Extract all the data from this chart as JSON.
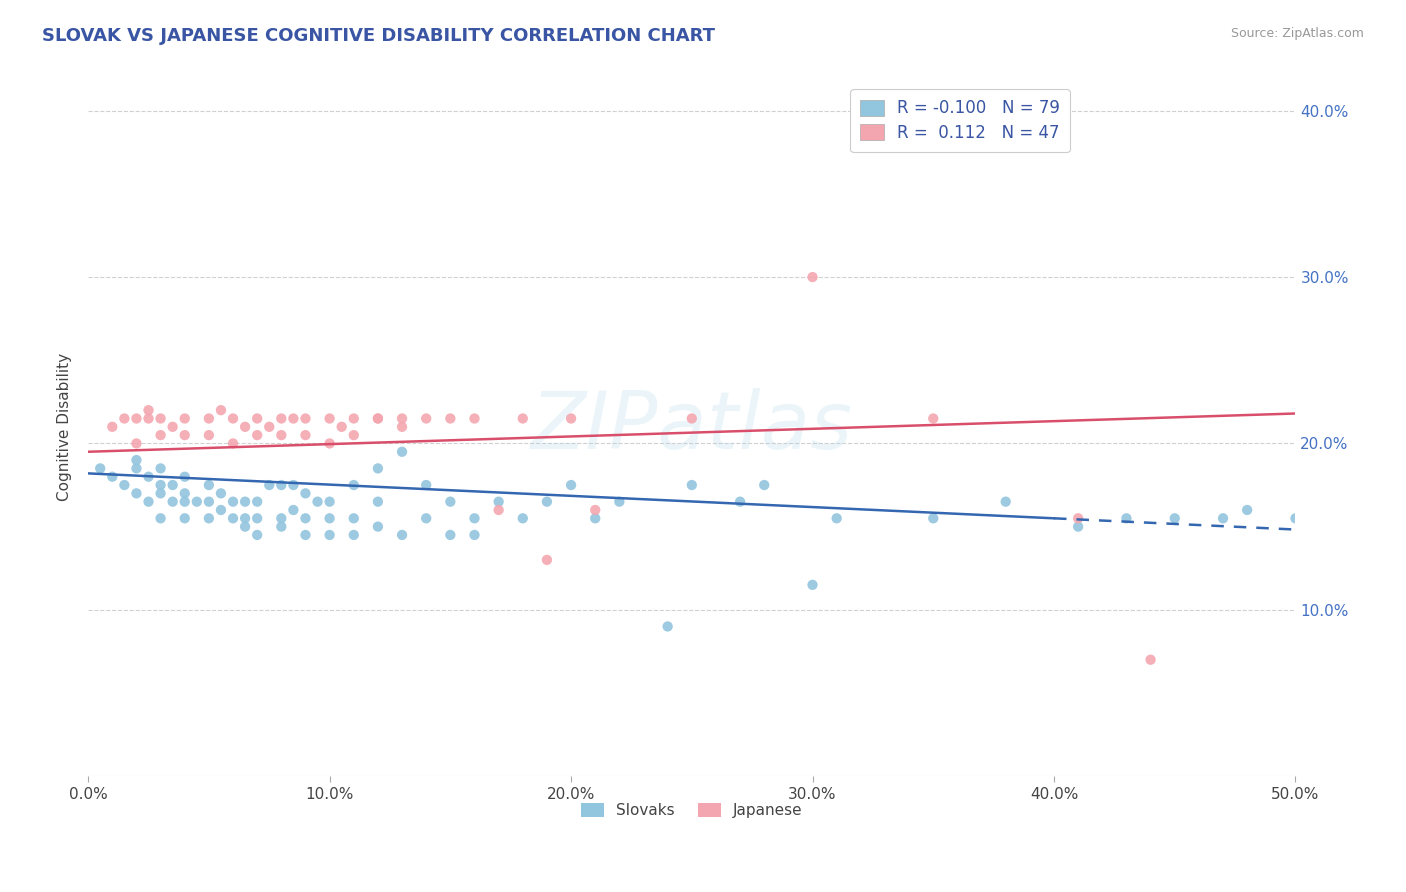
{
  "title": "SLOVAK VS JAPANESE COGNITIVE DISABILITY CORRELATION CHART",
  "source": "Source: ZipAtlas.com",
  "ylabel": "Cognitive Disability",
  "xlim": [
    0.0,
    0.5
  ],
  "ylim": [
    0.0,
    0.42
  ],
  "xticks": [
    0.0,
    0.1,
    0.2,
    0.3,
    0.4,
    0.5
  ],
  "xtick_labels": [
    "0.0%",
    "10.0%",
    "20.0%",
    "30.0%",
    "40.0%",
    "50.0%"
  ],
  "yticks": [
    0.0,
    0.1,
    0.2,
    0.3,
    0.4
  ],
  "ytick_labels": [
    "",
    "10.0%",
    "20.0%",
    "30.0%",
    "40.0%"
  ],
  "slovak_color": "#92c5de",
  "japanese_color": "#f4a6b0",
  "trendline_slovak_color": "#3467b0",
  "trendline_japanese_color": "#d94f6b",
  "R_slovak": -0.1,
  "N_slovak": 79,
  "R_japanese": 0.112,
  "N_japanese": 47,
  "legend_color": "#3955a3",
  "watermark": "ZIPatlas",
  "background_color": "#ffffff",
  "grid_color": "#d0d0d0",
  "slovak_x": [
    0.005,
    0.01,
    0.015,
    0.02,
    0.02,
    0.02,
    0.025,
    0.025,
    0.03,
    0.03,
    0.03,
    0.03,
    0.035,
    0.035,
    0.04,
    0.04,
    0.04,
    0.04,
    0.045,
    0.05,
    0.05,
    0.05,
    0.055,
    0.055,
    0.06,
    0.06,
    0.065,
    0.065,
    0.065,
    0.07,
    0.07,
    0.07,
    0.075,
    0.08,
    0.08,
    0.08,
    0.085,
    0.085,
    0.09,
    0.09,
    0.09,
    0.095,
    0.1,
    0.1,
    0.1,
    0.11,
    0.11,
    0.11,
    0.12,
    0.12,
    0.12,
    0.13,
    0.13,
    0.14,
    0.14,
    0.15,
    0.15,
    0.16,
    0.16,
    0.17,
    0.18,
    0.19,
    0.2,
    0.21,
    0.22,
    0.24,
    0.25,
    0.27,
    0.28,
    0.3,
    0.31,
    0.35,
    0.38,
    0.41,
    0.43,
    0.45,
    0.47,
    0.48,
    0.5
  ],
  "slovak_y": [
    0.185,
    0.18,
    0.175,
    0.17,
    0.185,
    0.19,
    0.165,
    0.18,
    0.155,
    0.17,
    0.175,
    0.185,
    0.165,
    0.175,
    0.155,
    0.165,
    0.17,
    0.18,
    0.165,
    0.155,
    0.165,
    0.175,
    0.16,
    0.17,
    0.155,
    0.165,
    0.15,
    0.155,
    0.165,
    0.145,
    0.155,
    0.165,
    0.175,
    0.15,
    0.155,
    0.175,
    0.16,
    0.175,
    0.145,
    0.155,
    0.17,
    0.165,
    0.145,
    0.155,
    0.165,
    0.145,
    0.155,
    0.175,
    0.15,
    0.165,
    0.185,
    0.145,
    0.195,
    0.155,
    0.175,
    0.145,
    0.165,
    0.145,
    0.155,
    0.165,
    0.155,
    0.165,
    0.175,
    0.155,
    0.165,
    0.09,
    0.175,
    0.165,
    0.175,
    0.115,
    0.155,
    0.155,
    0.165,
    0.15,
    0.155,
    0.155,
    0.155,
    0.16,
    0.155
  ],
  "japanese_x": [
    0.01,
    0.015,
    0.02,
    0.02,
    0.025,
    0.025,
    0.03,
    0.03,
    0.035,
    0.04,
    0.04,
    0.05,
    0.05,
    0.055,
    0.06,
    0.06,
    0.065,
    0.07,
    0.07,
    0.075,
    0.08,
    0.08,
    0.085,
    0.09,
    0.09,
    0.1,
    0.1,
    0.105,
    0.11,
    0.11,
    0.12,
    0.12,
    0.13,
    0.13,
    0.14,
    0.15,
    0.16,
    0.17,
    0.18,
    0.19,
    0.2,
    0.21,
    0.25,
    0.3,
    0.35,
    0.41,
    0.44
  ],
  "japanese_y": [
    0.21,
    0.215,
    0.2,
    0.215,
    0.215,
    0.22,
    0.205,
    0.215,
    0.21,
    0.205,
    0.215,
    0.205,
    0.215,
    0.22,
    0.2,
    0.215,
    0.21,
    0.205,
    0.215,
    0.21,
    0.205,
    0.215,
    0.215,
    0.205,
    0.215,
    0.2,
    0.215,
    0.21,
    0.205,
    0.215,
    0.215,
    0.215,
    0.21,
    0.215,
    0.215,
    0.215,
    0.215,
    0.16,
    0.215,
    0.13,
    0.215,
    0.16,
    0.215,
    0.3,
    0.215,
    0.155,
    0.07
  ],
  "trendline_slovak_start_x": 0.0,
  "trendline_slovak_start_y": 0.182,
  "trendline_slovak_end_x": 0.4,
  "trendline_slovak_end_y": 0.155,
  "trendline_slovak_dash_start_x": 0.4,
  "trendline_slovak_dash_end_x": 0.5,
  "trendline_japanese_start_x": 0.0,
  "trendline_japanese_start_y": 0.195,
  "trendline_japanese_end_x": 0.5,
  "trendline_japanese_end_y": 0.218
}
